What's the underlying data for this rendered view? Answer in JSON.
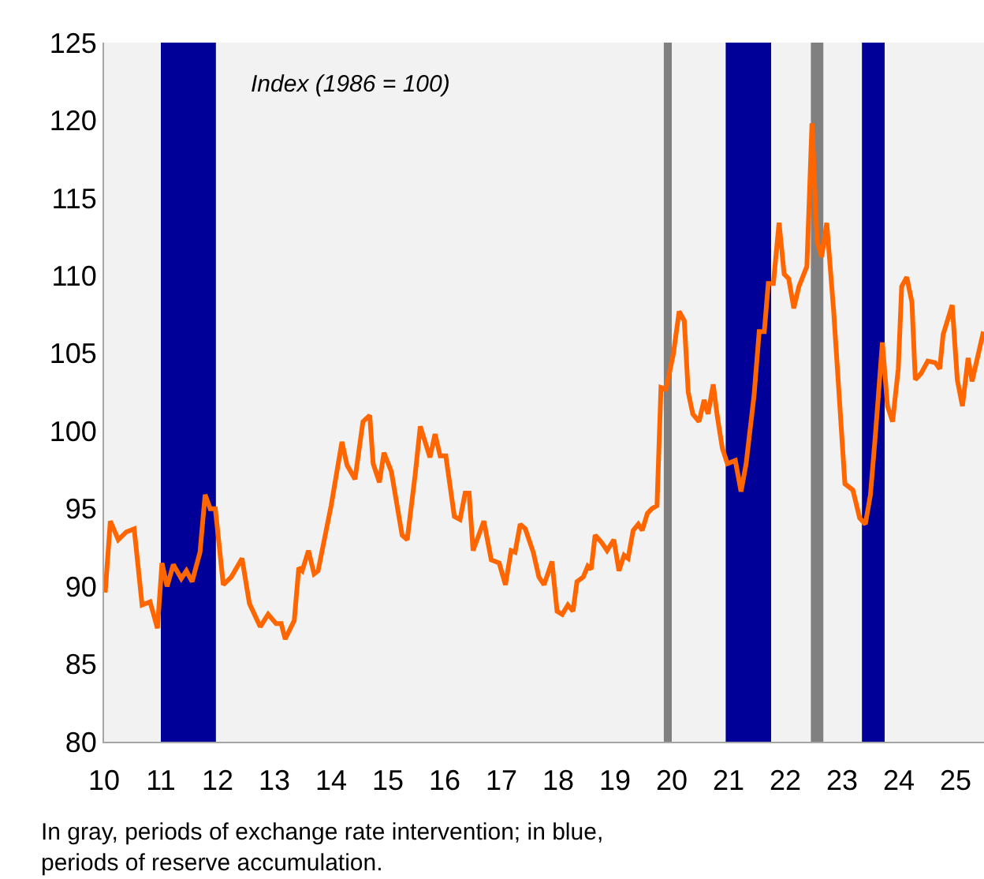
{
  "chart_data": {
    "type": "line",
    "x": [
      10.02,
      10.11,
      10.25,
      10.39,
      10.53,
      10.67,
      10.81,
      10.94,
      11.02,
      11.11,
      11.22,
      11.36,
      11.45,
      11.55,
      11.69,
      11.78,
      11.87,
      11.96,
      12.1,
      12.24,
      12.43,
      12.56,
      12.75,
      12.89,
      13.03,
      13.12,
      13.19,
      13.35,
      13.43,
      13.49,
      13.6,
      13.7,
      13.77,
      14.0,
      14.19,
      14.28,
      14.42,
      14.56,
      14.68,
      14.74,
      14.85,
      14.93,
      15.06,
      15.25,
      15.34,
      15.48,
      15.57,
      15.74,
      15.83,
      15.92,
      16.02,
      16.17,
      16.27,
      16.36,
      16.43,
      16.5,
      16.69,
      16.82,
      16.96,
      17.07,
      17.17,
      17.24,
      17.33,
      17.42,
      17.56,
      17.66,
      17.75,
      17.89,
      17.98,
      18.07,
      18.17,
      18.26,
      18.33,
      18.44,
      18.52,
      18.58,
      18.65,
      18.77,
      18.86,
      18.98,
      19.07,
      19.16,
      19.23,
      19.32,
      19.41,
      19.48,
      19.57,
      19.65,
      19.74,
      19.81,
      19.9,
      20.03,
      20.13,
      20.22,
      20.29,
      20.37,
      20.48,
      20.57,
      20.64,
      20.73,
      20.8,
      20.89,
      20.98,
      21.12,
      21.22,
      21.31,
      21.45,
      21.54,
      21.63,
      21.7,
      21.79,
      21.89,
      21.98,
      22.06,
      22.15,
      22.24,
      22.38,
      22.47,
      22.56,
      22.64,
      22.73,
      22.85,
      23.05,
      23.19,
      23.31,
      23.41,
      23.5,
      23.59,
      23.71,
      23.8,
      23.89,
      23.99,
      24.05,
      24.14,
      24.23,
      24.29,
      24.39,
      24.51,
      24.64,
      24.72,
      24.78,
      24.94,
      25.03,
      25.12,
      25.22,
      25.29,
      25.49
    ],
    "series": [
      {
        "color": "#ff6600",
        "values": [
          89.6,
          94.2,
          93.0,
          93.5,
          93.7,
          88.8,
          89.0,
          87.3,
          91.5,
          90.0,
          91.4,
          90.5,
          91.0,
          90.3,
          92.2,
          95.9,
          95.0,
          95.0,
          90.1,
          90.6,
          91.8,
          88.9,
          87.4,
          88.2,
          87.6,
          87.6,
          86.6,
          87.8,
          91.2,
          91.0,
          92.3,
          90.8,
          91.0,
          95.2,
          99.3,
          97.8,
          96.9,
          100.6,
          101.0,
          97.9,
          96.7,
          98.6,
          97.4,
          93.3,
          93.0,
          97.2,
          100.3,
          98.3,
          99.8,
          98.4,
          98.4,
          94.5,
          94.3,
          96.0,
          96.0,
          92.3,
          94.2,
          91.7,
          91.5,
          90.1,
          92.3,
          92.2,
          94.0,
          93.7,
          92.2,
          90.6,
          90.1,
          91.6,
          88.4,
          88.2,
          88.8,
          88.4,
          90.3,
          90.6,
          91.3,
          91.1,
          93.3,
          92.8,
          92.3,
          93.0,
          91.0,
          92.0,
          91.8,
          93.6,
          94.0,
          93.6,
          94.7,
          95.0,
          95.2,
          102.8,
          102.7,
          105.0,
          107.7,
          107.1,
          102.5,
          101.1,
          100.6,
          102.0,
          101.1,
          103.0,
          101.0,
          98.9,
          97.9,
          98.1,
          96.1,
          97.9,
          102.3,
          106.4,
          106.4,
          109.5,
          109.5,
          113.4,
          110.1,
          109.8,
          107.9,
          109.3,
          110.6,
          119.8,
          112.2,
          111.2,
          113.4,
          107.8,
          96.6,
          96.2,
          94.4,
          94.0,
          95.9,
          99.9,
          105.7,
          101.6,
          100.6,
          104.0,
          109.3,
          109.9,
          108.3,
          103.3,
          103.7,
          104.5,
          104.4,
          104.0,
          106.2,
          108.1,
          103.3,
          101.6,
          104.7,
          103.2,
          106.4
        ]
      }
    ],
    "xlim": [
      10,
      25.5
    ],
    "xticks": [
      10,
      11,
      12,
      13,
      14,
      15,
      16,
      17,
      18,
      19,
      20,
      21,
      22,
      23,
      24,
      25
    ],
    "ylim": [
      80,
      125
    ],
    "yticks": [
      80,
      85,
      90,
      95,
      100,
      105,
      110,
      115,
      120,
      125
    ],
    "bands": [
      {
        "axis": "x",
        "from": 11.0,
        "to": 11.97,
        "color": "#000099"
      },
      {
        "axis": "x",
        "from": 19.86,
        "to": 20.0,
        "color": "#808080"
      },
      {
        "axis": "x",
        "from": 20.95,
        "to": 21.75,
        "color": "#000099"
      },
      {
        "axis": "x",
        "from": 22.45,
        "to": 22.67,
        "color": "#808080"
      },
      {
        "axis": "x",
        "from": 23.35,
        "to": 23.75,
        "color": "#000099"
      }
    ],
    "annotations": [
      "Index (1986 = 100)",
      "In gray, periods of exchange rate intervention; in blue,\nperiods of reserve accumulation."
    ],
    "grid": false,
    "marker": "none",
    "line_style": "solid"
  }
}
